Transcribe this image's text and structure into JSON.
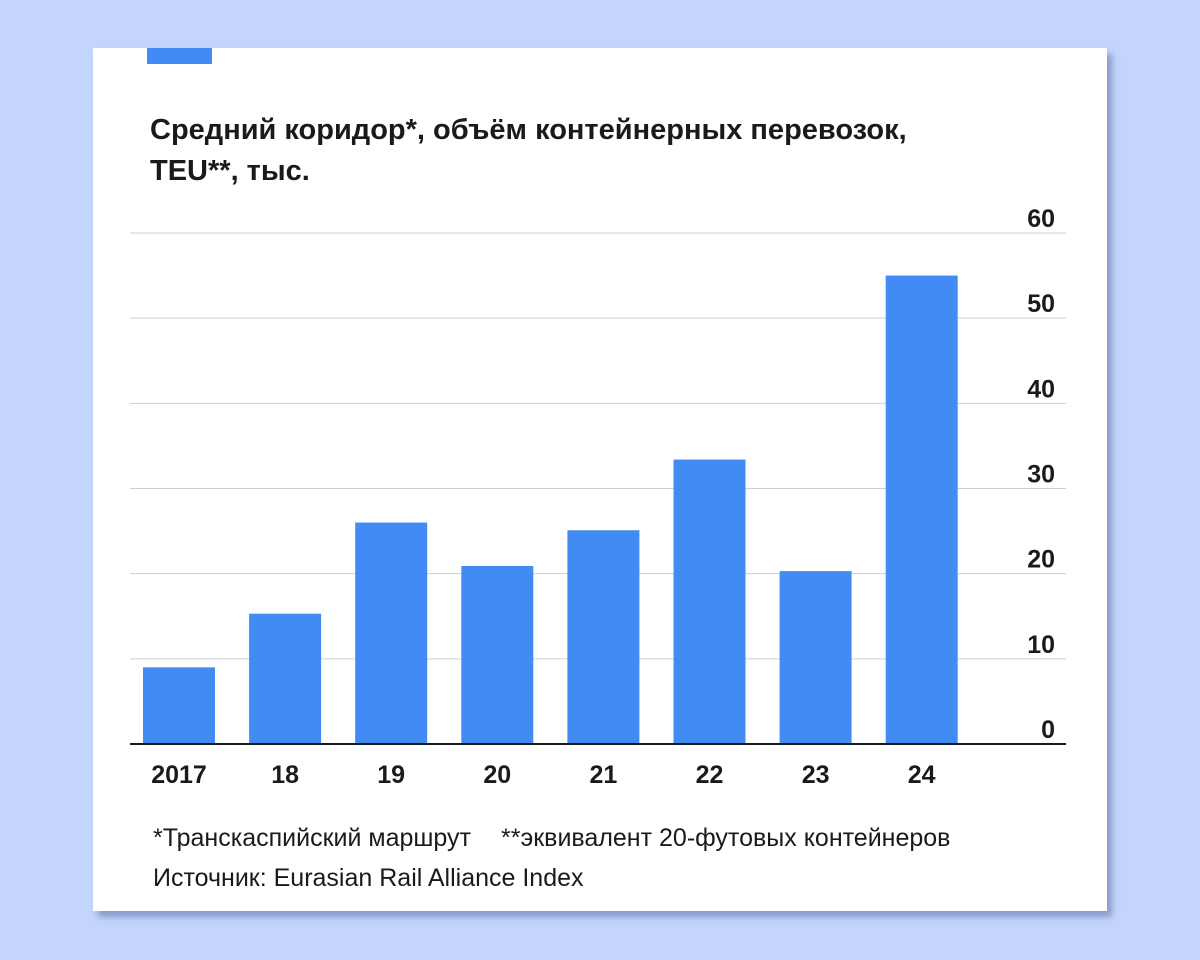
{
  "accent_color": "#428bf4",
  "chart_data": {
    "type": "bar",
    "title_lines": [
      "Средний коридор*, объём контейнерных перевозок,",
      "TEU**, тыс."
    ],
    "categories": [
      "2017",
      "18",
      "19",
      "20",
      "21",
      "22",
      "23",
      "24"
    ],
    "values": [
      9,
      15.3,
      26,
      20.9,
      25.1,
      33.4,
      20.3,
      55
    ],
    "ylim": [
      0,
      60
    ],
    "yticks": [
      "0",
      "10",
      "20",
      "30",
      "40",
      "50",
      "60"
    ],
    "y_axis_side": "right",
    "grid": true,
    "bar_color": "#428bf4"
  },
  "footnotes": {
    "note1": "*Транскаспийский маршрут",
    "note2": "**эквивалент 20-футовых контейнеров",
    "source": "Источник: Eurasian Rail Alliance Index"
  }
}
